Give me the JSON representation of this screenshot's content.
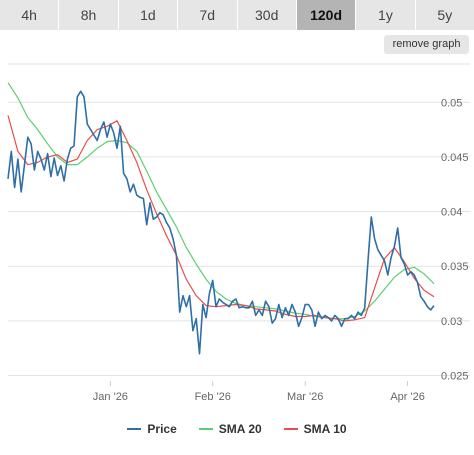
{
  "tabs": [
    {
      "label": "4h",
      "active": false
    },
    {
      "label": "8h",
      "active": false
    },
    {
      "label": "1d",
      "active": false
    },
    {
      "label": "7d",
      "active": false
    },
    {
      "label": "30d",
      "active": false
    },
    {
      "label": "120d",
      "active": true
    },
    {
      "label": "1y",
      "active": false
    },
    {
      "label": "5y",
      "active": false
    }
  ],
  "remove_graph_label": "remove graph",
  "colors": {
    "price": "#2f6fa7",
    "sma20": "#5ccf6f",
    "sma10": "#e84d4d",
    "grid": "#e3e3e3",
    "axis_text": "#666666"
  },
  "chart_data": {
    "type": "line",
    "title": "",
    "xlabel": "",
    "ylabel": "",
    "x_ticks": [
      "Jan '26",
      "Feb '26",
      "Mar '26",
      "Apr '26"
    ],
    "x_tick_days": [
      31,
      62,
      90,
      121
    ],
    "x_range_days": [
      0,
      129
    ],
    "y_ticks": [
      "0.025",
      "0.03",
      "0.035",
      "0.04",
      "0.045",
      "0.05"
    ],
    "ylim": [
      0.0245,
      0.0535
    ],
    "grid": true,
    "legend": "bottom",
    "series": [
      {
        "name": "Price",
        "key": "price",
        "x": [
          0,
          1,
          2,
          3,
          4,
          5,
          6,
          7,
          8,
          9,
          10,
          11,
          12,
          13,
          14,
          15,
          16,
          17,
          18,
          19,
          20,
          21,
          22,
          23,
          24,
          25,
          26,
          27,
          28,
          29,
          30,
          31,
          32,
          33,
          34,
          35,
          36,
          37,
          38,
          39,
          40,
          41,
          42,
          43,
          44,
          45,
          46,
          47,
          48,
          49,
          50,
          51,
          52,
          53,
          54,
          55,
          56,
          57,
          58,
          59,
          60,
          61,
          62,
          63,
          64,
          65,
          66,
          67,
          68,
          69,
          70,
          71,
          72,
          73,
          74,
          75,
          76,
          77,
          78,
          79,
          80,
          81,
          82,
          83,
          84,
          85,
          86,
          87,
          88,
          89,
          90,
          91,
          92,
          93,
          94,
          95,
          96,
          97,
          98,
          99,
          100,
          101,
          102,
          103,
          104,
          105,
          106,
          107,
          108,
          109,
          110,
          111,
          112,
          113,
          114,
          115,
          116,
          117,
          118,
          119,
          120,
          121,
          122,
          123,
          124,
          125,
          126,
          127,
          128,
          129
        ],
        "values": [
          0.043,
          0.0455,
          0.0422,
          0.0448,
          0.0418,
          0.0443,
          0.0468,
          0.0462,
          0.0438,
          0.0455,
          0.0448,
          0.0438,
          0.0453,
          0.0432,
          0.0449,
          0.0433,
          0.0442,
          0.0428,
          0.0448,
          0.0458,
          0.046,
          0.0505,
          0.051,
          0.0505,
          0.048,
          0.0475,
          0.047,
          0.0465,
          0.0475,
          0.0482,
          0.0468,
          0.048,
          0.0472,
          0.0458,
          0.0478,
          0.0435,
          0.043,
          0.0418,
          0.0425,
          0.0415,
          0.0413,
          0.0412,
          0.0388,
          0.0408,
          0.0393,
          0.0395,
          0.0399,
          0.0397,
          0.039,
          0.0385,
          0.0375,
          0.036,
          0.0308,
          0.0323,
          0.0313,
          0.0323,
          0.0291,
          0.0302,
          0.027,
          0.0315,
          0.0303,
          0.0325,
          0.0337,
          0.0313,
          0.032,
          0.0317,
          0.0315,
          0.0313,
          0.0318,
          0.032,
          0.0312,
          0.0313,
          0.0312,
          0.0312,
          0.0318,
          0.0305,
          0.031,
          0.0305,
          0.0318,
          0.0313,
          0.0298,
          0.0302,
          0.0315,
          0.0303,
          0.0312,
          0.0305,
          0.0315,
          0.0308,
          0.0295,
          0.0303,
          0.0315,
          0.0315,
          0.031,
          0.0295,
          0.0308,
          0.0302,
          0.0305,
          0.0303,
          0.03,
          0.0305,
          0.0302,
          0.0295,
          0.0302,
          0.0302,
          0.0305,
          0.0302,
          0.0308,
          0.0305,
          0.0312,
          0.0355,
          0.0395,
          0.0375,
          0.0365,
          0.036,
          0.0355,
          0.0342,
          0.0358,
          0.0368,
          0.0385,
          0.0358,
          0.0352,
          0.0342,
          0.0345,
          0.0342,
          0.0335,
          0.0322,
          0.0318,
          0.0313,
          0.031,
          0.0314
        ]
      },
      {
        "name": "SMA 20",
        "key": "sma20",
        "x": [
          0,
          3,
          6,
          9,
          12,
          15,
          18,
          21,
          24,
          27,
          30,
          33,
          36,
          39,
          42,
          45,
          48,
          51,
          54,
          57,
          60,
          63,
          66,
          69,
          72,
          75,
          78,
          81,
          84,
          87,
          90,
          93,
          96,
          99,
          102,
          105,
          108,
          111,
          114,
          117,
          120,
          123,
          126,
          129
        ],
        "values": [
          0.0518,
          0.0504,
          0.0486,
          0.0475,
          0.0462,
          0.045,
          0.0443,
          0.0443,
          0.045,
          0.0458,
          0.0464,
          0.0465,
          0.0463,
          0.0455,
          0.0437,
          0.0418,
          0.0402,
          0.0386,
          0.0367,
          0.0352,
          0.0338,
          0.0327,
          0.032,
          0.0316,
          0.0314,
          0.0313,
          0.0312,
          0.0311,
          0.0309,
          0.0307,
          0.0306,
          0.0304,
          0.0303,
          0.0302,
          0.0302,
          0.0304,
          0.0309,
          0.0318,
          0.0329,
          0.034,
          0.0347,
          0.0349,
          0.0343,
          0.0334
        ]
      },
      {
        "name": "SMA 10",
        "key": "sma10",
        "x": [
          0,
          3,
          6,
          9,
          12,
          15,
          18,
          21,
          24,
          27,
          30,
          33,
          36,
          39,
          42,
          45,
          48,
          51,
          54,
          57,
          60,
          63,
          66,
          69,
          72,
          75,
          78,
          81,
          84,
          87,
          90,
          93,
          96,
          99,
          102,
          105,
          108,
          111,
          114,
          117,
          120,
          123,
          126,
          129
        ],
        "values": [
          0.0488,
          0.0455,
          0.0443,
          0.0445,
          0.045,
          0.0452,
          0.0445,
          0.0448,
          0.0465,
          0.0475,
          0.0478,
          0.0483,
          0.0465,
          0.0445,
          0.042,
          0.0398,
          0.0378,
          0.036,
          0.0338,
          0.0323,
          0.0314,
          0.0313,
          0.0314,
          0.0315,
          0.0314,
          0.0311,
          0.031,
          0.0309,
          0.0306,
          0.0304,
          0.0304,
          0.0305,
          0.0303,
          0.0302,
          0.03,
          0.0301,
          0.0303,
          0.033,
          0.0357,
          0.0367,
          0.0354,
          0.0339,
          0.0328,
          0.0322
        ]
      }
    ]
  }
}
